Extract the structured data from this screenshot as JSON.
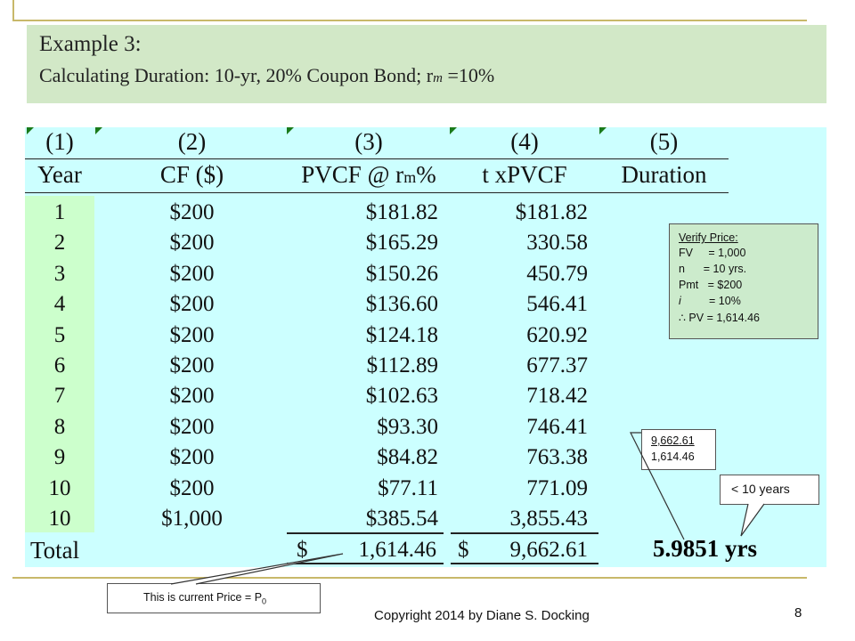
{
  "title": {
    "line1": "Example 3:",
    "line2_prefix": "Calculating Duration: 10-yr, 20% Coupon Bond; r",
    "line2_sub": "m",
    "line2_suffix": " =10%"
  },
  "table": {
    "col_numbers": [
      "(1)",
      "(2)",
      "(3)",
      "(4)",
      "(5)"
    ],
    "headers": {
      "year": "Year",
      "cf": "CF ($)",
      "pvcf_prefix": "PVCF @ r",
      "pvcf_sub": "m",
      "pvcf_suffix": "%",
      "tpvcf": "t xPVCF",
      "duration": "Duration"
    },
    "rows": [
      {
        "year": "1",
        "cf": "$200",
        "pvcf": "$181.82",
        "tpvcf": "$181.82"
      },
      {
        "year": "2",
        "cf": "$200",
        "pvcf": "$165.29",
        "tpvcf": "330.58"
      },
      {
        "year": "3",
        "cf": "$200",
        "pvcf": "$150.26",
        "tpvcf": "450.79"
      },
      {
        "year": "4",
        "cf": "$200",
        "pvcf": "$136.60",
        "tpvcf": "546.41"
      },
      {
        "year": "5",
        "cf": "$200",
        "pvcf": "$124.18",
        "tpvcf": "620.92"
      },
      {
        "year": "6",
        "cf": "$200",
        "pvcf": "$112.89",
        "tpvcf": "677.37"
      },
      {
        "year": "7",
        "cf": "$200",
        "pvcf": "$102.63",
        "tpvcf": "718.42"
      },
      {
        "year": "8",
        "cf": "$200",
        "pvcf": "$93.30",
        "tpvcf": "746.41"
      },
      {
        "year": "9",
        "cf": "$200",
        "pvcf": "$84.82",
        "tpvcf": "763.38"
      },
      {
        "year": "10",
        "cf": "$200",
        "pvcf": "$77.11",
        "tpvcf": "771.09"
      },
      {
        "year": "10",
        "cf": "$1,000",
        "pvcf": "$385.54",
        "tpvcf": "3,855.43"
      }
    ],
    "total": {
      "label": "Total",
      "pv_currency": "$",
      "pv_value": "1,614.46",
      "tpv_currency": "$",
      "tpv_value": "9,662.61",
      "duration": "5.9851 yrs"
    }
  },
  "verify": {
    "title": "Verify Price:",
    "lines": [
      "FV     = 1,000",
      "n      = 10 yrs.",
      "Pmt   = $200"
    ],
    "i_label": "i",
    "i_value": "         = 10%",
    "therefore": "∴",
    "pv": " PV = 1,614.46"
  },
  "ratio": {
    "numerator": "9,662.61",
    "denominator": "1,614.46"
  },
  "years_note": "< 10 years",
  "price_note": {
    "text": "This is current Price = P",
    "sub": "0"
  },
  "copyright": "Copyright 2014 by Diane S. Docking",
  "page_number": "8"
}
